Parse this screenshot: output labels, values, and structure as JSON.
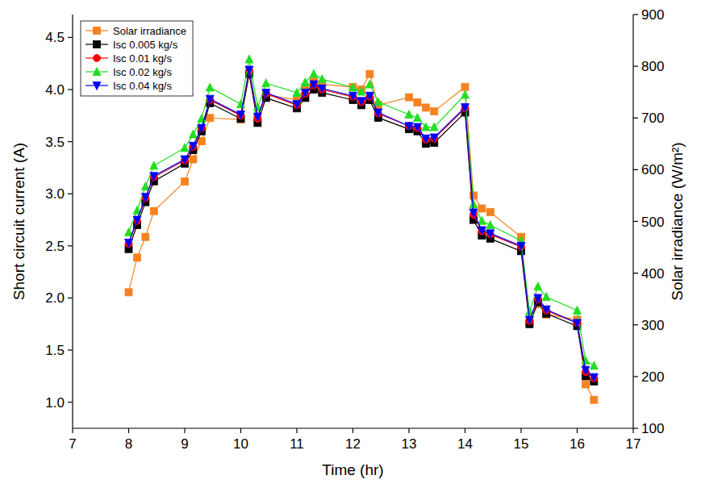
{
  "chart_data": {
    "type": "line",
    "x_label": "Time (hr)",
    "y_label": "Short circuit current (A)",
    "y2_label": "Solar irradiance (W/m²)",
    "x": [
      8,
      8.15,
      8.3,
      8.45,
      9,
      9.15,
      9.3,
      9.45,
      10,
      10.15,
      10.3,
      10.45,
      11,
      11.15,
      11.3,
      11.45,
      12,
      12.15,
      12.3,
      12.45,
      13,
      13.15,
      13.3,
      13.45,
      14,
      14.15,
      14.3,
      14.45,
      15,
      15.15,
      15.3,
      15.45,
      16,
      16.15,
      16.3
    ],
    "xlim": [
      7,
      17
    ],
    "xticks": [
      7,
      8,
      9,
      10,
      11,
      12,
      13,
      14,
      15,
      16,
      17
    ],
    "ylim": [
      0.75,
      4.72
    ],
    "yticks": [
      {
        "value": 1,
        "label": "1.0"
      },
      1.5,
      {
        "value": 2,
        "label": "2.0"
      },
      2.5,
      {
        "value": 3,
        "label": "3.0"
      },
      3.5,
      {
        "value": 4,
        "label": "4.0"
      },
      4.5
    ],
    "y2lim": [
      100,
      900
    ],
    "y2ticks": [
      100,
      200,
      300,
      400,
      500,
      600,
      700,
      800,
      900
    ],
    "legend": "upper left",
    "grid": false,
    "series": [
      {
        "name": "Solar irradiance",
        "color": "#f58220",
        "marker": "square",
        "axis": "y2",
        "values": [
          363,
          430,
          470,
          520,
          577,
          620,
          655,
          700,
          697,
          785,
          700,
          745,
          735,
          760,
          770,
          765,
          760,
          755,
          785,
          725,
          740,
          730,
          720,
          713,
          760,
          550,
          525,
          518,
          470,
          305,
          340,
          320,
          310,
          185,
          155
        ]
      },
      {
        "name": "Isc 0.005 kg/s",
        "color": "#000000",
        "marker": "square",
        "values": [
          2.47,
          2.7,
          2.92,
          3.12,
          3.29,
          3.42,
          3.6,
          3.87,
          3.72,
          4.15,
          3.68,
          3.92,
          3.82,
          3.92,
          4.0,
          3.97,
          3.9,
          3.85,
          3.9,
          3.73,
          3.62,
          3.6,
          3.48,
          3.49,
          3.78,
          2.75,
          2.6,
          2.57,
          2.45,
          1.75,
          1.96,
          1.85,
          1.73,
          1.25,
          1.2
        ]
      },
      {
        "name": "Isc 0.01 kg/s",
        "color": "#ff0000",
        "marker": "circle",
        "values": [
          2.52,
          2.74,
          2.96,
          3.16,
          3.32,
          3.45,
          3.63,
          3.9,
          3.75,
          4.18,
          3.72,
          3.96,
          3.85,
          3.96,
          4.04,
          4.0,
          3.93,
          3.88,
          3.93,
          3.77,
          3.65,
          3.63,
          3.52,
          3.53,
          3.82,
          2.8,
          2.64,
          2.61,
          2.49,
          1.78,
          1.99,
          1.88,
          1.76,
          1.29,
          1.23
        ]
      },
      {
        "name": "Isc 0.02 kg/s",
        "color": "#22dd22",
        "marker": "triangle-up",
        "values": [
          2.63,
          2.84,
          3.07,
          3.27,
          3.44,
          3.57,
          3.72,
          4.02,
          3.86,
          4.29,
          3.83,
          4.06,
          3.97,
          4.07,
          4.15,
          4.1,
          4.02,
          3.98,
          4.05,
          3.88,
          3.76,
          3.73,
          3.64,
          3.64,
          3.95,
          2.9,
          2.74,
          2.7,
          2.55,
          1.87,
          2.11,
          2.01,
          1.88,
          1.4,
          1.35
        ]
      },
      {
        "name": "Isc 0.04 kg/s",
        "color": "#0000ff",
        "marker": "triangle-down",
        "values": [
          2.53,
          2.75,
          2.97,
          3.17,
          3.33,
          3.46,
          3.63,
          3.91,
          3.76,
          4.19,
          3.74,
          3.97,
          3.86,
          3.97,
          4.05,
          4.01,
          3.94,
          3.89,
          3.94,
          3.78,
          3.65,
          3.64,
          3.53,
          3.54,
          3.83,
          2.82,
          2.65,
          2.62,
          2.5,
          1.79,
          2.0,
          1.89,
          1.76,
          1.31,
          1.24
        ]
      }
    ]
  }
}
